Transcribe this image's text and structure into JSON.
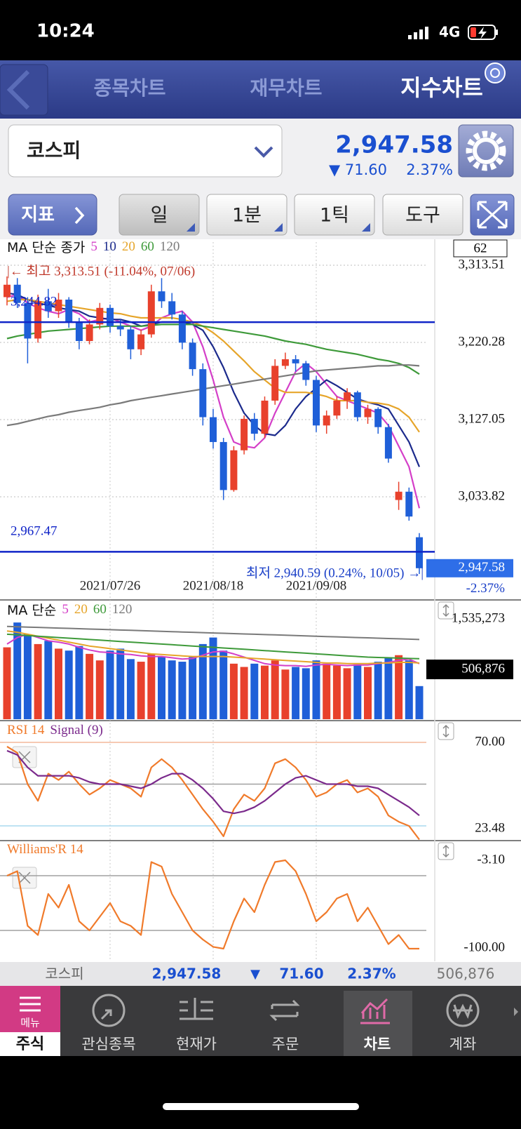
{
  "status_bar": {
    "time": "10:24",
    "network": "4G"
  },
  "tabs": [
    "종목차트",
    "재무차트",
    "지수차트"
  ],
  "header": {
    "index_name": "코스피",
    "price": "2,947.58",
    "change": "▼ 71.60",
    "change_pct": "2.37%"
  },
  "toolbar": {
    "indicator": "지표",
    "buttons": [
      "일",
      "1분",
      "1틱",
      "도구"
    ]
  },
  "chart_data": [
    {
      "type": "candlestick",
      "legend_title": "MA 단순 종가",
      "period_box": "62",
      "up_color": "#e8412c",
      "down_color": "#1f5fd8",
      "categories": [
        null,
        null,
        null,
        null,
        null,
        null,
        null,
        null,
        null,
        null,
        "2021/07/26",
        null,
        null,
        null,
        null,
        null,
        null,
        null,
        null,
        null,
        "2021/08/18",
        null,
        null,
        null,
        null,
        null,
        null,
        null,
        null,
        null,
        "2021/09/08",
        null,
        null,
        null,
        null,
        null,
        null,
        null,
        null,
        null,
        null
      ],
      "open": [
        3275,
        3290,
        3268,
        3225,
        3270,
        3258,
        3272,
        3245,
        3222,
        3242,
        3262,
        3240,
        3236,
        3212,
        3230,
        3282,
        3270,
        3254,
        3220,
        3188,
        3130,
        3100,
        3042,
        3090,
        3128,
        3110,
        3150,
        3192,
        3200,
        3195,
        3175,
        3120,
        3132,
        3150,
        3160,
        3130,
        3140,
        3118,
        3030,
        3040,
        2985
      ],
      "high": [
        3300,
        3298,
        3275,
        3278,
        3285,
        3280,
        3275,
        3250,
        3248,
        3268,
        3266,
        3248,
        3240,
        3236,
        3290,
        3298,
        3280,
        3258,
        3225,
        3195,
        3140,
        3105,
        3095,
        3132,
        3135,
        3155,
        3200,
        3208,
        3205,
        3198,
        3180,
        3138,
        3155,
        3165,
        3162,
        3145,
        3142,
        3122,
        3052,
        3045,
        2990
      ],
      "low": [
        3265,
        3262,
        3195,
        3220,
        3250,
        3250,
        3238,
        3212,
        3218,
        3236,
        3232,
        3228,
        3200,
        3205,
        3226,
        3262,
        3248,
        3212,
        3180,
        3120,
        3092,
        3030,
        3040,
        3085,
        3102,
        3105,
        3145,
        3188,
        3185,
        3168,
        3112,
        3110,
        3128,
        3140,
        3125,
        3122,
        3110,
        3075,
        3018,
        3005,
        2940.59
      ],
      "close": [
        3290,
        3268,
        3225,
        3270,
        3258,
        3272,
        3245,
        3222,
        3242,
        3262,
        3240,
        3236,
        3212,
        3230,
        3282,
        3270,
        3254,
        3220,
        3188,
        3130,
        3100,
        3042,
        3090,
        3128,
        3110,
        3150,
        3192,
        3200,
        3195,
        3175,
        3120,
        3132,
        3150,
        3160,
        3130,
        3140,
        3118,
        3080,
        3040,
        3010,
        2947.58
      ],
      "series": [
        {
          "name": "5",
          "color": "#d43fc8",
          "values": [
            3275,
            3278,
            3268,
            3262,
            3258,
            3255,
            3260,
            3255,
            3245,
            3248,
            3250,
            3245,
            3240,
            3235,
            3240,
            3250,
            3255,
            3258,
            3245,
            3215,
            3175,
            3130,
            3100,
            3095,
            3093,
            3105,
            3135,
            3160,
            3185,
            3195,
            3185,
            3170,
            3155,
            3150,
            3145,
            3140,
            3135,
            3120,
            3095,
            3070,
            3020
          ]
        },
        {
          "name": "10",
          "color": "#1b2a8c",
          "values": [
            3280,
            3278,
            3272,
            3268,
            3265,
            3262,
            3260,
            3258,
            3252,
            3250,
            3248,
            3248,
            3245,
            3240,
            3242,
            3245,
            3245,
            3245,
            3242,
            3235,
            3215,
            3190,
            3160,
            3135,
            3120,
            3110,
            3108,
            3120,
            3140,
            3155,
            3165,
            3175,
            3168,
            3160,
            3152,
            3148,
            3145,
            3140,
            3120,
            3100,
            3070
          ]
        },
        {
          "name": "20",
          "color": "#e6a52a",
          "values": [
            3270,
            3272,
            3272,
            3270,
            3268,
            3266,
            3264,
            3262,
            3260,
            3258,
            3256,
            3255,
            3252,
            3250,
            3250,
            3250,
            3250,
            3248,
            3245,
            3240,
            3232,
            3222,
            3210,
            3198,
            3185,
            3175,
            3165,
            3160,
            3160,
            3160,
            3158,
            3155,
            3150,
            3150,
            3150,
            3148,
            3147,
            3145,
            3140,
            3130,
            3112
          ]
        },
        {
          "name": "60",
          "color": "#3e9a3a",
          "values": [
            3225,
            3228,
            3230,
            3232,
            3234,
            3235,
            3236,
            3237,
            3238,
            3239,
            3240,
            3240,
            3240,
            3240,
            3241,
            3242,
            3242,
            3242,
            3242,
            3240,
            3238,
            3236,
            3234,
            3232,
            3230,
            3228,
            3225,
            3222,
            3220,
            3218,
            3215,
            3212,
            3210,
            3208,
            3206,
            3203,
            3200,
            3198,
            3195,
            3190,
            3182
          ]
        },
        {
          "name": "120",
          "color": "#7a7a7a",
          "values": [
            3120,
            3122,
            3125,
            3128,
            3131,
            3133,
            3136,
            3138,
            3140,
            3142,
            3145,
            3147,
            3150,
            3152,
            3154,
            3156,
            3158,
            3160,
            3162,
            3164,
            3166,
            3168,
            3170,
            3172,
            3174,
            3176,
            3178,
            3180,
            3182,
            3184,
            3186,
            3187,
            3188,
            3189,
            3190,
            3191,
            3192,
            3192,
            3193,
            3193,
            3192
          ]
        }
      ],
      "ylim": [
        2913.5,
        3341.5
      ],
      "yticks": [
        {
          "value": 3313.51,
          "label": "3,313.51"
        },
        {
          "value": 3220.28,
          "label": "3,220.28"
        },
        {
          "value": 3127.05,
          "label": "3,127.05"
        },
        {
          "value": 3033.82,
          "label": "3,033.82"
        }
      ],
      "grid": true,
      "hlines": [
        {
          "value": 3244.82,
          "label": "3,244.82",
          "color": "#1024c8"
        },
        {
          "value": 2967.47,
          "label": "2,967.47",
          "color": "#1024c8"
        }
      ],
      "high_annotation": "|← 최고 3,313.51 (-11.04%, 07/06)",
      "low_annotation": "최저 2,940.59 (0.24%, 10/05) →|",
      "current": {
        "value": 2947.58,
        "label": "2,947.58"
      },
      "change_label": "-2.37%"
    },
    {
      "type": "bar",
      "legend_title": "MA 단순",
      "values": [
        1100000,
        1480000,
        1300000,
        1150000,
        1200000,
        1080000,
        1050000,
        1120000,
        1000000,
        900000,
        1050000,
        1080000,
        920000,
        880000,
        1000000,
        960000,
        900000,
        880000,
        950000,
        1150000,
        1250000,
        1050000,
        850000,
        800000,
        850000,
        820000,
        900000,
        760000,
        800000,
        780000,
        900000,
        850000,
        820000,
        780000,
        840000,
        800000,
        880000,
        950000,
        980000,
        900000,
        506876
      ],
      "series": [
        {
          "name": "5",
          "color": "#d43fc8",
          "values": [
            1150000,
            1250000,
            1300000,
            1250000,
            1200000,
            1180000,
            1150000,
            1100000,
            1060000,
            1030000,
            1020000,
            1000000,
            990000,
            970000,
            960000,
            960000,
            940000,
            920000,
            930000,
            980000,
            1030000,
            1040000,
            1000000,
            950000,
            900000,
            850000,
            830000,
            820000,
            820000,
            810000,
            830000,
            840000,
            830000,
            820000,
            830000,
            830000,
            850000,
            870000,
            900000,
            920000,
            850000
          ]
        },
        {
          "name": "20",
          "color": "#e6a52a",
          "values": [
            1350000,
            1330000,
            1300000,
            1270000,
            1240000,
            1210000,
            1180000,
            1150000,
            1120000,
            1100000,
            1080000,
            1060000,
            1040000,
            1020000,
            1000000,
            990000,
            980000,
            970000,
            960000,
            960000,
            960000,
            960000,
            950000,
            940000,
            930000,
            920000,
            910000,
            900000,
            890000,
            880000,
            870000,
            860000,
            860000,
            850000,
            850000,
            850000,
            860000,
            860000,
            870000,
            870000,
            860000
          ]
        },
        {
          "name": "60",
          "color": "#3e9a3a",
          "values": [
            1300000,
            1290000,
            1280000,
            1270000,
            1260000,
            1250000,
            1240000,
            1230000,
            1220000,
            1210000,
            1200000,
            1190000,
            1180000,
            1170000,
            1160000,
            1150000,
            1140000,
            1130000,
            1120000,
            1110000,
            1100000,
            1090000,
            1080000,
            1070000,
            1060000,
            1050000,
            1040000,
            1030000,
            1020000,
            1010000,
            1000000,
            990000,
            980000,
            970000,
            960000,
            950000,
            945000,
            940000,
            935000,
            930000,
            925000
          ]
        },
        {
          "name": "120",
          "color": "#7a7a7a",
          "values": [
            1420000,
            1415000,
            1410000,
            1405000,
            1400000,
            1395000,
            1390000,
            1385000,
            1380000,
            1375000,
            1370000,
            1365000,
            1360000,
            1355000,
            1350000,
            1345000,
            1340000,
            1335000,
            1330000,
            1325000,
            1320000,
            1315000,
            1310000,
            1305000,
            1300000,
            1295000,
            1290000,
            1285000,
            1280000,
            1275000,
            1270000,
            1265000,
            1260000,
            1255000,
            1250000,
            1245000,
            1240000,
            1235000,
            1230000,
            1225000,
            1220000
          ]
        }
      ],
      "ylim": [
        0,
        1793000
      ],
      "yticks": [
        {
          "value": 1535273,
          "label": "1,535,273"
        }
      ],
      "current": {
        "value": 506876,
        "label": "506,876"
      }
    },
    {
      "type": "line",
      "series": [
        {
          "name": "RSI 14",
          "color": "#f07a2a",
          "values": [
            68,
            65,
            50,
            42,
            55,
            52,
            56,
            50,
            45,
            48,
            52,
            50,
            48,
            44,
            58,
            62,
            58,
            52,
            45,
            38,
            32,
            25,
            38,
            45,
            42,
            48,
            60,
            62,
            58,
            52,
            44,
            46,
            50,
            52,
            46,
            48,
            44,
            35,
            32,
            30,
            23.48
          ]
        },
        {
          "name": "Signal (9)",
          "color": "#7b2a8c",
          "values": [
            66,
            64,
            58,
            54,
            54,
            54,
            54,
            53,
            51,
            50,
            50,
            50,
            49,
            48,
            50,
            53,
            55,
            55,
            52,
            48,
            43,
            37,
            36,
            37,
            39,
            42,
            46,
            50,
            53,
            54,
            52,
            50,
            50,
            50,
            49,
            49,
            48,
            45,
            42,
            39,
            35
          ]
        }
      ],
      "ylim": [
        23.3,
        79.4
      ],
      "yticks": [
        {
          "value": 70,
          "label": "70.00"
        },
        {
          "value": 23.48,
          "label": "23.48"
        }
      ],
      "levels": [
        70,
        50,
        30
      ],
      "level_colors": [
        "#f3b79a",
        "#a0a0a0",
        "#a9d9ef"
      ]
    },
    {
      "type": "line",
      "series": [
        {
          "name": "Williams'R 14",
          "color": "#f07a2a",
          "values": [
            -20,
            -15,
            -75,
            -85,
            -40,
            -55,
            -30,
            -70,
            -80,
            -65,
            -50,
            -70,
            -75,
            -85,
            -5,
            -10,
            -40,
            -60,
            -80,
            -90,
            -98,
            -100,
            -70,
            -45,
            -60,
            -30,
            -5,
            -3.1,
            -15,
            -40,
            -70,
            -60,
            -45,
            -40,
            -70,
            -55,
            -75,
            -95,
            -85,
            -100,
            -100
          ]
        }
      ],
      "ylim": [
        -111.5,
        16.9
      ],
      "yticks": [
        {
          "value": -3.1,
          "label": "-3.10"
        },
        {
          "value": -100,
          "label": "-100.00"
        }
      ],
      "levels": [
        -20,
        -80
      ],
      "level_colors": [
        "#a0a0a0",
        "#a0a0a0"
      ]
    }
  ],
  "summary_bar": {
    "name": "코스피",
    "price": "2,947.58",
    "arrow": "▼",
    "change": "71.60",
    "change_pct": "2.37%",
    "volume": "506,876"
  },
  "bottom_nav": {
    "menu": "메뉴",
    "items": [
      "주식",
      "관심종목",
      "현재가",
      "주문",
      "차트",
      "계좌"
    ]
  }
}
